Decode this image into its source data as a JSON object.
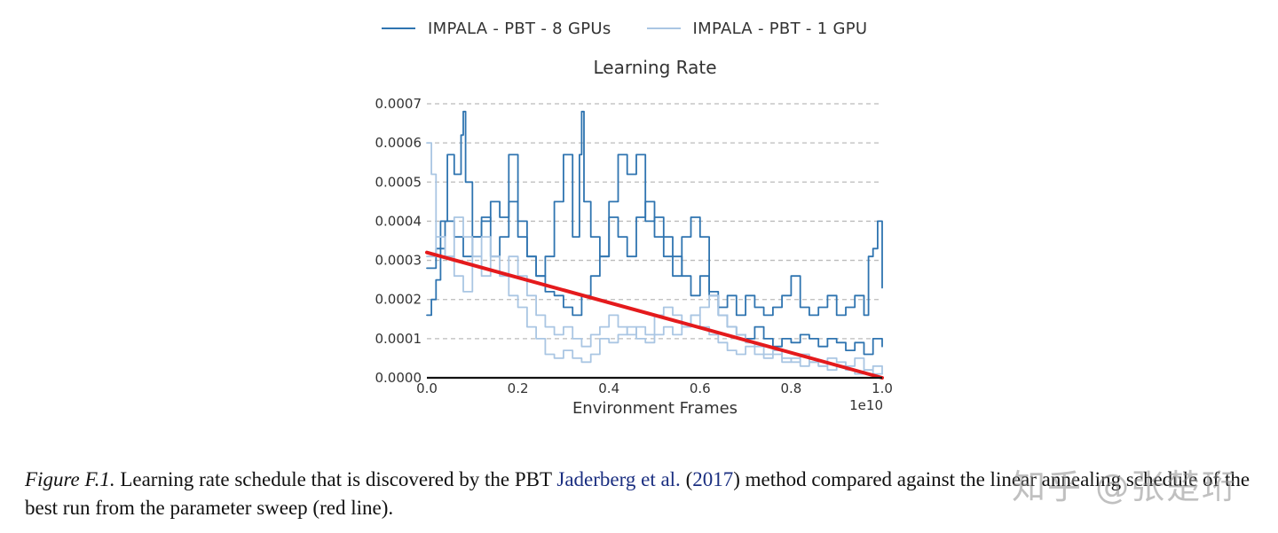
{
  "chart_data": {
    "type": "line",
    "title": "Learning Rate",
    "xlabel": "Environment Frames",
    "ylabel": "",
    "x_multiplier": "1e10",
    "xlim": [
      0.0,
      1.0
    ],
    "ylim": [
      0.0,
      0.0007
    ],
    "x_ticks": [
      "0.0",
      "0.2",
      "0.4",
      "0.6",
      "0.8",
      "1.0"
    ],
    "y_ticks": [
      "0.0000",
      "0.0001",
      "0.0002",
      "0.0003",
      "0.0004",
      "0.0005",
      "0.0006",
      "0.0007"
    ],
    "grid": "horizontal-dashed",
    "legend": {
      "placement": "top-center",
      "entries": [
        "IMPALA - PBT - 8 GPUs",
        "IMPALA - PBT - 1 GPU"
      ]
    },
    "series": [
      {
        "name": "IMPALA - PBT - 8 GPUs (run A)",
        "color": "#2f74b0",
        "step": true,
        "x": [
          0.0,
          0.01,
          0.02,
          0.03,
          0.045,
          0.06,
          0.075,
          0.08,
          0.085,
          0.1,
          0.12,
          0.14,
          0.16,
          0.18,
          0.2,
          0.22,
          0.24,
          0.26,
          0.28,
          0.3,
          0.32,
          0.335,
          0.34,
          0.345,
          0.36,
          0.38,
          0.4,
          0.42,
          0.44,
          0.46,
          0.48,
          0.5,
          0.52,
          0.54,
          0.56,
          0.58,
          0.6,
          0.62,
          0.64,
          0.66,
          0.68,
          0.7,
          0.72,
          0.74,
          0.76,
          0.78,
          0.8,
          0.82,
          0.84,
          0.86,
          0.88,
          0.9,
          0.92,
          0.94,
          0.96,
          0.97,
          0.98,
          0.99,
          1.0
        ],
        "y": [
          0.00016,
          0.0002,
          0.00025,
          0.0004,
          0.00057,
          0.00052,
          0.00062,
          0.00068,
          0.0005,
          0.00036,
          0.00041,
          0.00031,
          0.00036,
          0.00057,
          0.0004,
          0.00031,
          0.00026,
          0.00031,
          0.00045,
          0.00057,
          0.00036,
          0.00057,
          0.00068,
          0.00045,
          0.00036,
          0.00031,
          0.00045,
          0.00057,
          0.00052,
          0.00057,
          0.0004,
          0.00041,
          0.00036,
          0.00031,
          0.00026,
          0.00021,
          0.00026,
          0.00022,
          0.00018,
          0.00021,
          0.00016,
          0.00021,
          0.00018,
          0.00016,
          0.00018,
          0.00021,
          0.00026,
          0.00018,
          0.00016,
          0.00018,
          0.00021,
          0.00016,
          0.00018,
          0.00021,
          0.00016,
          0.00031,
          0.00033,
          0.0004,
          0.00023
        ]
      },
      {
        "name": "IMPALA - PBT - 8 GPUs (run B)",
        "color": "#2f74b0",
        "step": true,
        "x": [
          0.0,
          0.02,
          0.04,
          0.06,
          0.08,
          0.1,
          0.12,
          0.14,
          0.16,
          0.18,
          0.2,
          0.22,
          0.24,
          0.26,
          0.28,
          0.3,
          0.32,
          0.34,
          0.36,
          0.38,
          0.4,
          0.42,
          0.44,
          0.46,
          0.48,
          0.5,
          0.52,
          0.54,
          0.56,
          0.58,
          0.6,
          0.62,
          0.64,
          0.66,
          0.68,
          0.7,
          0.72,
          0.74,
          0.76,
          0.78,
          0.8,
          0.82,
          0.84,
          0.86,
          0.88,
          0.9,
          0.92,
          0.94,
          0.96,
          0.98,
          1.0
        ],
        "y": [
          0.00028,
          0.00033,
          0.0004,
          0.00036,
          0.00031,
          0.00036,
          0.0004,
          0.00045,
          0.00041,
          0.00045,
          0.00036,
          0.00031,
          0.00026,
          0.00022,
          0.00021,
          0.00018,
          0.00016,
          0.00021,
          0.00026,
          0.00031,
          0.00041,
          0.00036,
          0.00031,
          0.00041,
          0.00045,
          0.00036,
          0.00031,
          0.00026,
          0.00036,
          0.00041,
          0.00036,
          0.00021,
          0.00016,
          0.00013,
          0.00011,
          0.0001,
          0.00013,
          0.0001,
          8e-05,
          0.0001,
          9e-05,
          0.00011,
          0.0001,
          8e-05,
          0.0001,
          9e-05,
          7e-05,
          9e-05,
          6e-05,
          0.0001,
          8e-05
        ]
      },
      {
        "name": "IMPALA - PBT - 1 GPU (run A)",
        "color": "#aac6e3",
        "step": true,
        "x": [
          0.0,
          0.01,
          0.02,
          0.04,
          0.06,
          0.08,
          0.1,
          0.12,
          0.14,
          0.16,
          0.18,
          0.2,
          0.22,
          0.24,
          0.26,
          0.28,
          0.3,
          0.32,
          0.34,
          0.36,
          0.38,
          0.4,
          0.42,
          0.44,
          0.46,
          0.48,
          0.5,
          0.52,
          0.54,
          0.56,
          0.58,
          0.6,
          0.62,
          0.64,
          0.66,
          0.68,
          0.7,
          0.72,
          0.74,
          0.76,
          0.78,
          0.8,
          0.82,
          0.84,
          0.86,
          0.88,
          0.9,
          0.92,
          0.94,
          0.96,
          0.98,
          1.0
        ],
        "y": [
          0.0006,
          0.00052,
          0.00036,
          0.00031,
          0.00041,
          0.00036,
          0.00031,
          0.00026,
          0.00031,
          0.00026,
          0.00021,
          0.00018,
          0.00013,
          0.0001,
          6e-05,
          5e-05,
          7e-05,
          5e-05,
          4e-05,
          6e-05,
          0.0001,
          9e-05,
          0.00011,
          0.00013,
          0.0001,
          9e-05,
          0.00011,
          0.00013,
          0.00011,
          0.00013,
          0.00016,
          0.00013,
          0.00011,
          9e-05,
          7e-05,
          6e-05,
          8e-05,
          6e-05,
          5e-05,
          6e-05,
          4e-05,
          5e-05,
          3e-05,
          4e-05,
          3e-05,
          2e-05,
          3e-05,
          2e-05,
          1e-05,
          2e-05,
          1e-05,
          1e-05
        ]
      },
      {
        "name": "IMPALA - PBT - 1 GPU (run B)",
        "color": "#aac6e3",
        "step": true,
        "x": [
          0.0,
          0.02,
          0.04,
          0.06,
          0.08,
          0.1,
          0.12,
          0.14,
          0.16,
          0.18,
          0.2,
          0.22,
          0.24,
          0.26,
          0.28,
          0.3,
          0.32,
          0.34,
          0.36,
          0.38,
          0.4,
          0.42,
          0.44,
          0.46,
          0.48,
          0.5,
          0.52,
          0.54,
          0.56,
          0.58,
          0.6,
          0.62,
          0.64,
          0.66,
          0.68,
          0.7,
          0.72,
          0.74,
          0.76,
          0.78,
          0.8,
          0.82,
          0.84,
          0.86,
          0.88,
          0.9,
          0.92,
          0.94,
          0.96,
          0.98,
          1.0
        ],
        "y": [
          0.00031,
          0.00036,
          0.00031,
          0.00026,
          0.00022,
          0.00031,
          0.00036,
          0.00031,
          0.00026,
          0.00031,
          0.00026,
          0.00021,
          0.00016,
          0.00013,
          0.00011,
          0.00013,
          0.0001,
          8e-05,
          0.00011,
          0.00013,
          0.00016,
          0.00013,
          0.00011,
          0.00013,
          0.00011,
          0.00016,
          0.00018,
          0.00016,
          0.00013,
          0.00016,
          0.00018,
          0.00021,
          0.00016,
          0.00013,
          0.00011,
          9e-05,
          8e-05,
          6e-05,
          7e-05,
          5e-05,
          4e-05,
          6e-05,
          4e-05,
          3e-05,
          5e-05,
          4e-05,
          3e-05,
          5e-05,
          2e-05,
          3e-05,
          1e-05
        ]
      },
      {
        "name": "Linear annealing (red line)",
        "color": "#e41a1c",
        "step": false,
        "x": [
          0.0,
          1.0
        ],
        "y": [
          0.00032,
          0.0
        ]
      }
    ]
  },
  "caption": {
    "figure_label": "Figure F.1.",
    "text_before": " Learning rate schedule that is discovered by the PBT ",
    "citation_authors": "Jaderberg et al.",
    "text_mid": " (",
    "citation_year": "2017",
    "text_after": ") method compared against the linear annealing schedule of the best run from the parameter sweep (red line)."
  },
  "watermark": "知乎 @张楚珩",
  "colors": {
    "series_dark": "#2f74b0",
    "series_light": "#aac6e3",
    "baseline": "#e41a1c",
    "grid": "#bbbbbb",
    "citation": "#1a2e80"
  }
}
